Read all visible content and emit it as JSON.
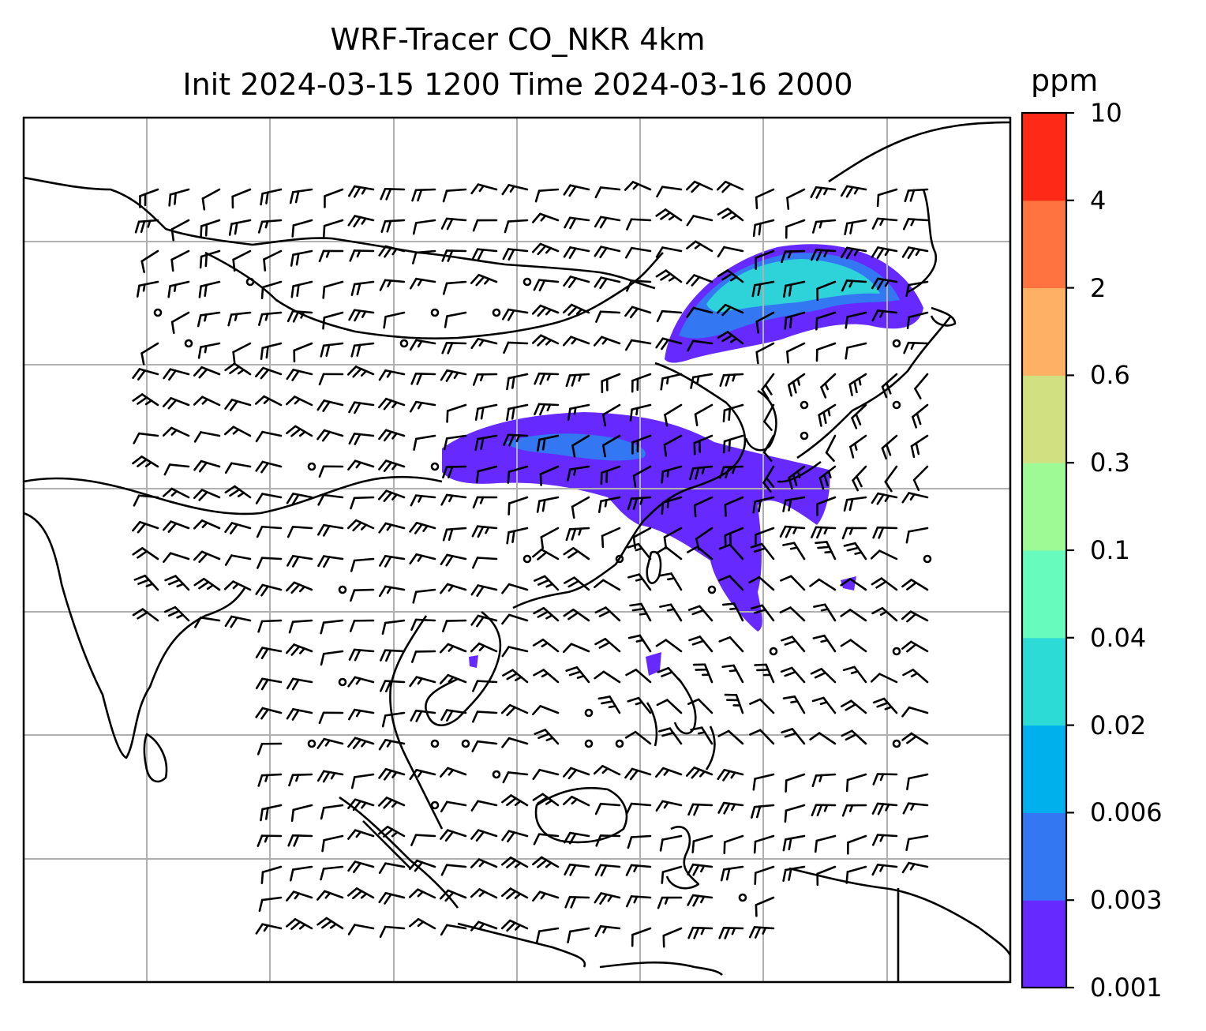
{
  "title": {
    "line1": "WRF-Tracer CO_NKR 4km",
    "line2": "Init 2024-03-15 1200 Time 2024-03-16 2000"
  },
  "colorbar": {
    "unit": "ppm",
    "levels": [
      "0.001",
      "0.003",
      "0.006",
      "0.02",
      "0.04",
      "0.1",
      "0.3",
      "0.6",
      "2",
      "4",
      "10"
    ],
    "colors": [
      "#6629ff",
      "#3377f3",
      "#00b0ec",
      "#2ddbd6",
      "#67fbbd",
      "#9dfa95",
      "#d1e081",
      "#feb064",
      "#ff7340",
      "#fe2a17"
    ]
  },
  "map": {
    "gridlines": true,
    "wind_barbs": true,
    "coastlines": true,
    "plume_colors": {
      "outer": "#6629ff",
      "mid": "#3377f3",
      "inner": "#2ddbd6",
      "core": "#67fbbd"
    }
  }
}
